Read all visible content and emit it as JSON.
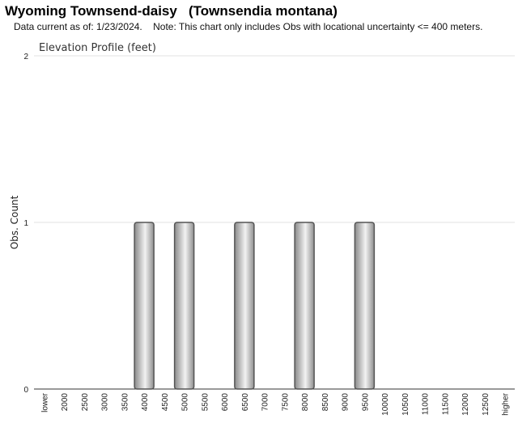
{
  "header": {
    "title": "Wyoming Townsend-daisy   (Townsendia montana)",
    "subtitle": "Data current as of: 1/23/2024.    Note: This chart only includes Obs with locational uncertainty <= 400 meters."
  },
  "chart_data": {
    "type": "bar",
    "title": "Elevation Profile (feet)",
    "xlabel": "",
    "ylabel": "Obs. Count",
    "categories": [
      "lower",
      "2000",
      "2500",
      "3000",
      "3500",
      "4000",
      "4500",
      "5000",
      "5500",
      "6000",
      "6500",
      "7000",
      "7500",
      "8000",
      "8500",
      "9000",
      "9500",
      "10000",
      "10500",
      "11000",
      "11500",
      "12000",
      "12500",
      "higher"
    ],
    "values": [
      0,
      0,
      0,
      0,
      0,
      1,
      0,
      1,
      0,
      0,
      1,
      0,
      0,
      1,
      0,
      0,
      1,
      0,
      0,
      0,
      0,
      0,
      0,
      0
    ],
    "ylim": [
      0,
      2
    ],
    "yticks": [
      0,
      1,
      2
    ],
    "grid": true,
    "colors": {
      "bar_edge": "#555555",
      "bar_dark": "#8a8a8a",
      "bar_light": "#f2f2f2",
      "grid": "#e0e0e0",
      "axis": "#333333"
    }
  }
}
